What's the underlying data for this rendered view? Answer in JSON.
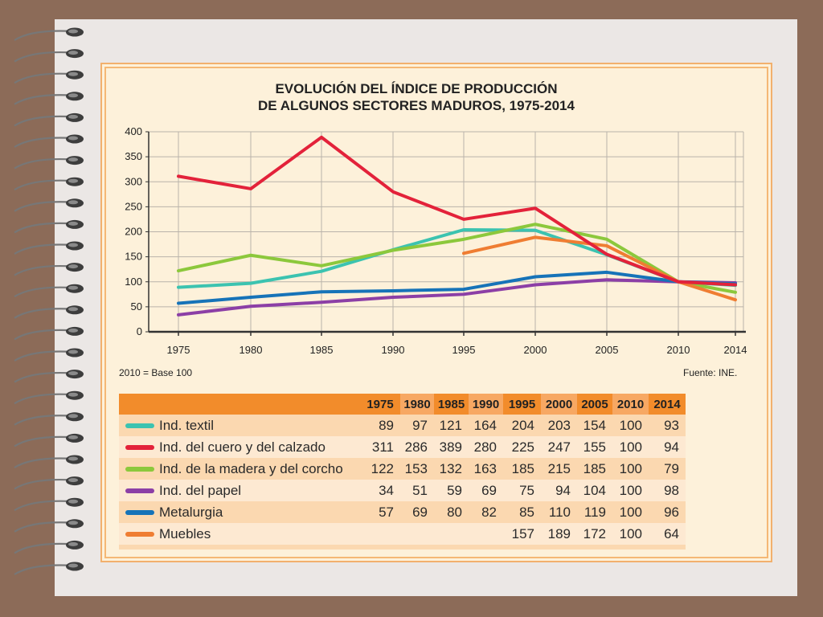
{
  "chart_data": {
    "type": "line",
    "title": "EVOLUCIÓN DEL ÍNDICE DE PRODUCCIÓN",
    "subtitle": "DE ALGUNOS SECTORES MADUROS, 1975-2014",
    "x": [
      "1975",
      "1980",
      "1985",
      "1990",
      "1995",
      "2000",
      "2005",
      "2010",
      "2014"
    ],
    "ylim": [
      0,
      400
    ],
    "yticks": [
      0,
      50,
      100,
      150,
      200,
      250,
      300,
      350,
      400
    ],
    "grid": true,
    "note_left": "2010 = Base 100",
    "note_right": "Fuente: INE.",
    "series": [
      {
        "name": "Ind. textil",
        "color": "#3cc3b0",
        "values": [
          89,
          97,
          121,
          164,
          204,
          203,
          154,
          100,
          93
        ]
      },
      {
        "name": "Ind. del cuero y del calzado",
        "color": "#e3223a",
        "values": [
          311,
          286,
          389,
          280,
          225,
          247,
          155,
          100,
          94
        ]
      },
      {
        "name": "Ind. de la madera y del corcho",
        "color": "#8cc83c",
        "values": [
          122,
          153,
          132,
          163,
          185,
          215,
          185,
          100,
          79
        ]
      },
      {
        "name": "Ind. del papel",
        "color": "#8c3fa6",
        "values": [
          34,
          51,
          59,
          69,
          75,
          94,
          104,
          100,
          98
        ]
      },
      {
        "name": "Metalurgia",
        "color": "#1673b8",
        "values": [
          57,
          69,
          80,
          82,
          85,
          110,
          119,
          100,
          96
        ]
      },
      {
        "name": "Muebles",
        "color": "#ef7d32",
        "values": [
          null,
          null,
          null,
          null,
          157,
          189,
          172,
          100,
          64
        ]
      }
    ]
  }
}
